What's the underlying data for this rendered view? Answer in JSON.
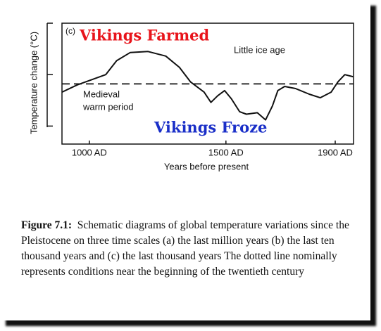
{
  "chart_data": {
    "type": "line",
    "y_label": "Temperature change (°C)",
    "x_label": "Years before present",
    "x": [
      900,
      956,
      1060,
      1100,
      1150,
      1215,
      1280,
      1330,
      1370,
      1420,
      1445,
      1470,
      1495,
      1520,
      1550,
      1575,
      1615,
      1645,
      1670,
      1690,
      1715,
      1755,
      1805,
      1845,
      1885,
      1910,
      1935,
      1965
    ],
    "values": [
      -0.34,
      -0.2,
      0,
      0.27,
      0.43,
      0.45,
      0.36,
      0.14,
      -0.14,
      -0.34,
      -0.54,
      -0.41,
      -0.31,
      -0.47,
      -0.72,
      -0.77,
      -0.74,
      -0.88,
      -0.61,
      -0.31,
      -0.23,
      -0.27,
      -0.38,
      -0.45,
      -0.34,
      -0.14,
      0,
      -0.04
    ],
    "color": "#111111",
    "reference_line": -0.18,
    "xlim": [
      900,
      1967
    ],
    "xticks": [
      {
        "value": 1000,
        "label": "1000 AD"
      },
      {
        "value": 1500,
        "label": "1500 AD"
      },
      {
        "value": 1900,
        "label": "1900 AD"
      }
    ],
    "ylim": [
      -1.35,
      1
    ],
    "yticks": [
      1,
      0,
      -1
    ],
    "annotations": [
      "(c)",
      "Vikings Farmed",
      "Little ice age",
      "Medieval",
      "warm period",
      "Vikings Froze"
    ],
    "annotation_colors": [
      "#111111",
      "#e8141b",
      "#111111",
      "#111111",
      "#111111",
      "#1a2fc8"
    ]
  },
  "caption": {
    "label": "Figure 7.1:",
    "text": "Schematic diagrams of global temperature variations since the Pleistocene on three time scales (a) the last million years (b) the last ten thousand years and (c) the last thousand years The dotted line nominally represents conditions near the beginning of the twentieth century"
  }
}
